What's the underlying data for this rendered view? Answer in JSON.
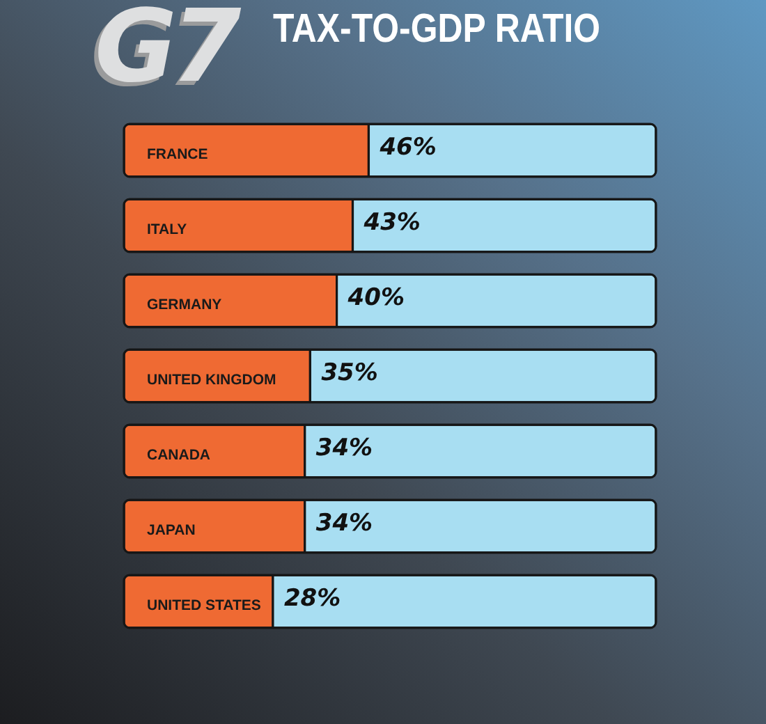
{
  "chart_data": {
    "type": "bar",
    "title": "G7",
    "subtitle": "TAX-TO-GDP RATIO",
    "orientation": "horizontal",
    "stacked": true,
    "categories": [
      "FRANCE",
      "ITALY",
      "GERMANY",
      "UNITED KINGDOM",
      "CANADA",
      "JAPAN",
      "UNITED STATES"
    ],
    "series": [
      {
        "color": "#ef6a33",
        "values": [
          46,
          43,
          40,
          35,
          34,
          34,
          28
        ],
        "value_labels": [
          "46%",
          "43%",
          "40%",
          "35%",
          "34%",
          "34%",
          "28%"
        ]
      },
      {
        "color": "#a8def2",
        "values": [
          54,
          57,
          60,
          65,
          66,
          66,
          72
        ]
      }
    ],
    "xlim": [
      0,
      100
    ],
    "tick_labels": "y"
  }
}
